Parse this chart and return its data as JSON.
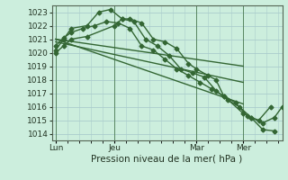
{
  "background_color": "#cceedd",
  "grid_color": "#aacccc",
  "line_color": "#336633",
  "title": "Pression niveau de la mer( hPa )",
  "ylim": [
    1013.5,
    1023.5
  ],
  "yticks": [
    1014,
    1015,
    1016,
    1017,
    1018,
    1019,
    1020,
    1021,
    1022,
    1023
  ],
  "xtick_labels": [
    "Lun",
    "Jeu",
    "Mar",
    "Mer"
  ],
  "xtick_positions": [
    0,
    30,
    72,
    96
  ],
  "xlim": [
    -2,
    116
  ],
  "series1": {
    "x": [
      0,
      4,
      8,
      16,
      30,
      34,
      38,
      44,
      50,
      56,
      62,
      68,
      72,
      78,
      82,
      86,
      96,
      100,
      106,
      112,
      116
    ],
    "y": [
      1020.0,
      1020.5,
      1021.0,
      1021.2,
      1022.0,
      1022.5,
      1022.5,
      1022.2,
      1021.0,
      1020.8,
      1020.3,
      1019.2,
      1018.8,
      1018.3,
      1018.0,
      1016.8,
      1015.5,
      1015.2,
      1014.8,
      1015.2,
      1016.0
    ]
  },
  "series2": {
    "x": [
      0,
      4,
      8,
      16,
      22,
      28,
      34,
      40,
      46,
      52,
      58,
      64,
      70,
      76,
      82,
      88,
      94,
      100,
      106,
      112
    ],
    "y": [
      1020.2,
      1021.0,
      1021.8,
      1022.0,
      1023.0,
      1023.2,
      1022.5,
      1022.3,
      1021.0,
      1020.5,
      1019.8,
      1018.8,
      1018.5,
      1018.2,
      1017.2,
      1016.5,
      1016.0,
      1015.2,
      1014.3,
      1014.2
    ]
  },
  "series3": {
    "x": [
      0,
      4,
      8,
      14,
      20,
      26,
      32,
      38,
      44,
      50,
      56,
      62,
      68,
      74,
      80,
      86,
      92,
      98,
      104,
      110
    ],
    "y": [
      1020.5,
      1021.1,
      1021.5,
      1021.8,
      1022.0,
      1022.3,
      1022.2,
      1021.8,
      1020.5,
      1020.2,
      1019.5,
      1018.8,
      1018.3,
      1017.8,
      1017.3,
      1016.8,
      1016.3,
      1015.3,
      1015.0,
      1016.0
    ]
  },
  "trend1": {
    "x": [
      0,
      96
    ],
    "y": [
      1021.0,
      1019.0
    ]
  },
  "trend2": {
    "x": [
      0,
      96
    ],
    "y": [
      1021.0,
      1016.2
    ]
  },
  "trend3": {
    "x": [
      0,
      96
    ],
    "y": [
      1020.8,
      1017.8
    ]
  },
  "vlines_x": [
    0,
    30,
    72,
    96
  ],
  "marker": "D",
  "markersize": 2.5,
  "linewidth": 1.0,
  "title_fontsize": 7.5,
  "tick_fontsize": 6.5
}
